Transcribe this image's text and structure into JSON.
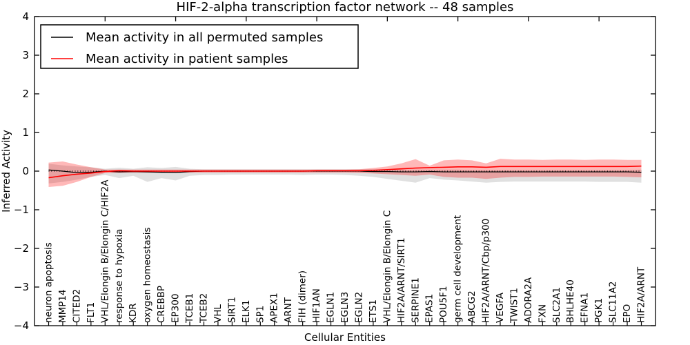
{
  "figure": {
    "kind": "matplotlib-style line chart with uncertainty bands",
    "background": "#ffffff",
    "frame_color": "#000000"
  },
  "chart_data": {
    "type": "line",
    "title": "HIF-2-alpha transcription factor network -- 48 samples",
    "xlabel": "Cellular Entities",
    "ylabel": "Inferred Activity",
    "ylim": [
      -4,
      4
    ],
    "yticks": [
      4,
      3,
      2,
      1,
      0,
      -1,
      -2,
      -3,
      -4
    ],
    "grid": false,
    "legend_position": "upper left",
    "top_tick_indices": [
      4,
      9,
      14,
      19,
      24,
      29,
      34,
      39
    ],
    "zero_line": {
      "value": 0,
      "style": "dotted",
      "color": "#000000"
    },
    "categories": [
      "neuron apoptosis",
      "MMP14",
      "CITED2",
      "FLT1",
      "VHL/Elongin B/Elongin C/HIF2A",
      "response to hypoxia",
      "KDR",
      "oxygen homeostasis",
      "CREBBP",
      "EP300",
      "TCEB1",
      "TCEB2",
      "VHL",
      "SIRT1",
      "ELK1",
      "SP1",
      "APEX1",
      "ARNT",
      "FIH (dimer)",
      "HIF1AN",
      "EGLN1",
      "EGLN3",
      "EGLN2",
      "ETS1",
      "VHL/Elongin B/Elongin C",
      "HIF2A/ARNT/SIRT1",
      "SERPINE1",
      "EPAS1",
      "POU5F1",
      "germ cell development",
      "ABCG2",
      "HIF2A/ARNT/Cbp/p300",
      "VEGFA",
      "TWIST1",
      "ADORA2A",
      "FXN",
      "SLC2A1",
      "BHLHE40",
      "EFNA1",
      "PGK1",
      "SLC11A2",
      "EPO",
      "HIF2A/ARNT"
    ],
    "series": [
      {
        "name": "Mean activity in all permuted samples",
        "color": "#000000",
        "band_color": "rgba(0,0,0,0.12)",
        "values": [
          0.03,
          0.0,
          -0.04,
          -0.03,
          0.0,
          -0.02,
          -0.01,
          -0.02,
          -0.03,
          -0.04,
          -0.01,
          0.0,
          0.0,
          0.0,
          0.0,
          0.0,
          0.0,
          0.0,
          0.0,
          0.0,
          0.0,
          0.0,
          0.0,
          -0.01,
          -0.01,
          -0.02,
          -0.02,
          -0.01,
          -0.02,
          -0.02,
          -0.02,
          -0.02,
          -0.02,
          -0.02,
          -0.02,
          -0.02,
          -0.02,
          -0.02,
          -0.02,
          -0.02,
          -0.02,
          -0.02,
          -0.03
        ],
        "band_upper": [
          0.19,
          0.15,
          0.12,
          0.1,
          0.06,
          0.09,
          0.06,
          0.1,
          0.08,
          0.11,
          0.06,
          0.05,
          0.05,
          0.05,
          0.05,
          0.05,
          0.05,
          0.05,
          0.05,
          0.05,
          0.05,
          0.05,
          0.05,
          0.05,
          0.05,
          0.04,
          0.04,
          0.04,
          0.04,
          0.04,
          0.03,
          0.03,
          0.03,
          0.03,
          0.03,
          0.03,
          0.03,
          0.03,
          0.03,
          0.03,
          0.03,
          0.03,
          0.04
        ],
        "band_lower": [
          -0.32,
          -0.28,
          -0.22,
          -0.15,
          -0.1,
          -0.18,
          -0.12,
          -0.28,
          -0.18,
          -0.24,
          -0.12,
          -0.1,
          -0.1,
          -0.09,
          -0.09,
          -0.09,
          -0.09,
          -0.09,
          -0.1,
          -0.09,
          -0.09,
          -0.1,
          -0.12,
          -0.15,
          -0.2,
          -0.25,
          -0.3,
          -0.18,
          -0.22,
          -0.24,
          -0.27,
          -0.3,
          -0.28,
          -0.27,
          -0.27,
          -0.27,
          -0.27,
          -0.27,
          -0.27,
          -0.28,
          -0.28,
          -0.28,
          -0.3
        ]
      },
      {
        "name": "Mean activity in patient samples",
        "color": "#ff0000",
        "band_color": "rgba(255,0,0,0.28)",
        "values": [
          -0.17,
          -0.12,
          -0.08,
          -0.05,
          -0.01,
          0.01,
          0.0,
          0.0,
          0.0,
          0.0,
          0.0,
          0.0,
          0.0,
          0.0,
          0.0,
          0.0,
          0.0,
          0.0,
          0.0,
          0.01,
          0.01,
          0.01,
          0.01,
          0.02,
          0.04,
          0.06,
          0.08,
          0.09,
          0.1,
          0.11,
          0.11,
          0.1,
          0.12,
          0.12,
          0.12,
          0.12,
          0.12,
          0.12,
          0.12,
          0.12,
          0.12,
          0.12,
          0.13
        ],
        "band_upper": [
          0.22,
          0.25,
          0.17,
          0.1,
          0.04,
          0.04,
          0.04,
          0.04,
          0.04,
          0.04,
          0.04,
          0.04,
          0.04,
          0.04,
          0.04,
          0.04,
          0.04,
          0.04,
          0.04,
          0.04,
          0.04,
          0.04,
          0.05,
          0.08,
          0.12,
          0.2,
          0.31,
          0.14,
          0.28,
          0.3,
          0.28,
          0.2,
          0.32,
          0.3,
          0.3,
          0.29,
          0.3,
          0.3,
          0.29,
          0.3,
          0.3,
          0.29,
          0.29
        ],
        "band_lower": [
          -0.41,
          -0.38,
          -0.28,
          -0.15,
          -0.05,
          -0.05,
          -0.04,
          -0.04,
          -0.04,
          -0.04,
          -0.04,
          -0.04,
          -0.04,
          -0.04,
          -0.04,
          -0.04,
          -0.04,
          -0.04,
          -0.04,
          -0.04,
          -0.04,
          -0.04,
          -0.05,
          -0.06,
          -0.08,
          -0.1,
          -0.12,
          -0.09,
          -0.15,
          -0.17,
          -0.17,
          -0.2,
          -0.17,
          -0.15,
          -0.15,
          -0.14,
          -0.14,
          -0.14,
          -0.14,
          -0.14,
          -0.14,
          -0.15,
          -0.16
        ]
      }
    ]
  }
}
